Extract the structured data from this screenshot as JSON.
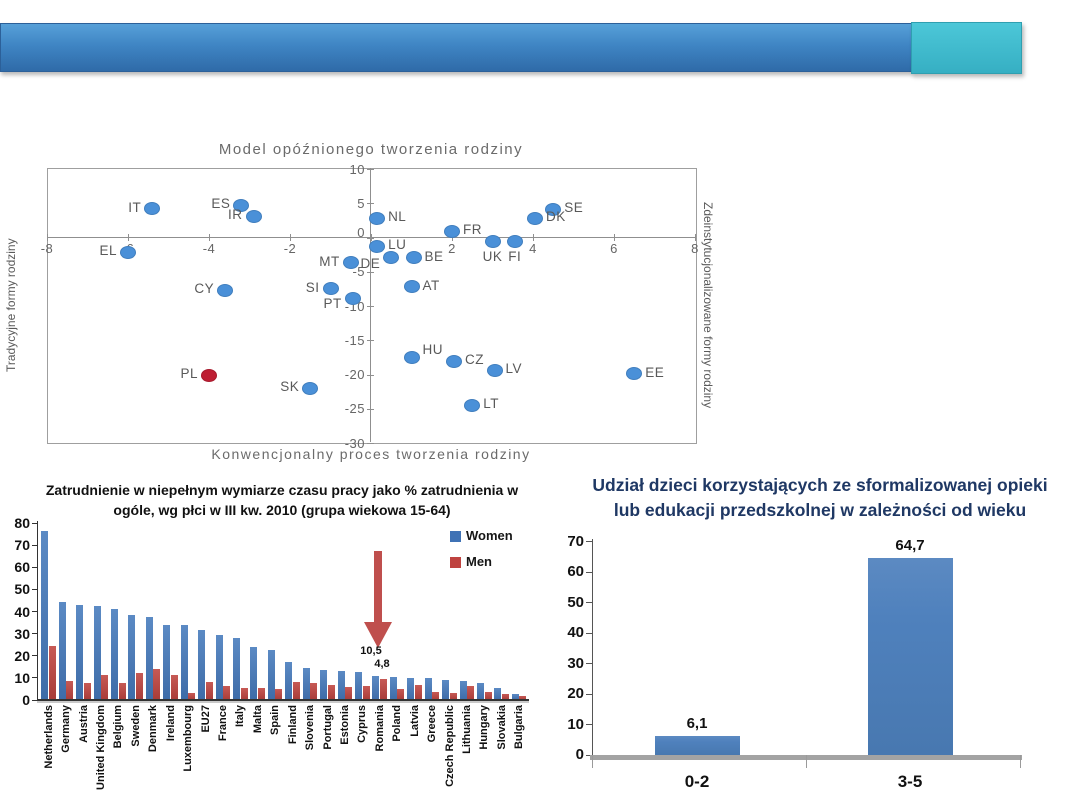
{
  "banner": {
    "main_color": "#3f85c4",
    "accent_color": "#3fbccf"
  },
  "chart_data": [
    {
      "type": "scatter",
      "title": "Model opóźnionego tworzenia rodziny",
      "xlabel": "Konwencjonalny proces tworzenia rodziny",
      "ylabel_left": "Tradycyjne formy rodziny",
      "ylabel_right": "Zdeinstytucjonalizowane formy rodziny",
      "xlim": [
        -8,
        8
      ],
      "ylim": [
        -30,
        10
      ],
      "x_ticks": [
        -8,
        -6,
        -4,
        -2,
        0,
        2,
        4,
        6,
        8
      ],
      "y_ticks": [
        10,
        5,
        0,
        -5,
        -10,
        -15,
        -20,
        -25,
        -30
      ],
      "grid": false,
      "point_color": "#4a90d8",
      "highlight_color": "#be1e33",
      "points": [
        {
          "code": "IT",
          "x": -5.4,
          "y": 4.3,
          "side": "left"
        },
        {
          "code": "ES",
          "x": -3.2,
          "y": 4.8,
          "side": "left"
        },
        {
          "code": "IR",
          "x": -2.9,
          "y": 3.2,
          "side": "left"
        },
        {
          "code": "NL",
          "x": 0.15,
          "y": 2.9,
          "side": "right"
        },
        {
          "code": "FR",
          "x": 2.0,
          "y": 1.0,
          "side": "right"
        },
        {
          "code": "SE",
          "x": 4.5,
          "y": 4.2,
          "side": "right"
        },
        {
          "code": "DK",
          "x": 4.05,
          "y": 2.9,
          "side": "right"
        },
        {
          "code": "UK",
          "x": 3.0,
          "y": -0.45,
          "side": "below"
        },
        {
          "code": "FI",
          "x": 3.55,
          "y": -0.45,
          "side": "below"
        },
        {
          "code": "EL",
          "x": -6.0,
          "y": -2.1,
          "side": "left"
        },
        {
          "code": "LU",
          "x": 0.15,
          "y": -1.2,
          "side": "right"
        },
        {
          "code": "DE",
          "x": 0.5,
          "y": -2.8,
          "side": "left",
          "dy": 8
        },
        {
          "code": "BE",
          "x": 1.05,
          "y": -2.9,
          "side": "right"
        },
        {
          "code": "MT",
          "x": -0.5,
          "y": -3.6,
          "side": "left"
        },
        {
          "code": "SI",
          "x": -1.0,
          "y": -7.4,
          "side": "left"
        },
        {
          "code": "PT",
          "x": -0.45,
          "y": -8.9,
          "side": "left",
          "dy": 6
        },
        {
          "code": "AT",
          "x": 1.0,
          "y": -7.1,
          "side": "right"
        },
        {
          "code": "CY",
          "x": -3.6,
          "y": -7.6,
          "side": "left"
        },
        {
          "code": "HU",
          "x": 1.0,
          "y": -17.4,
          "side": "right",
          "dy": -6
        },
        {
          "code": "CZ",
          "x": 2.05,
          "y": -18.0,
          "side": "right"
        },
        {
          "code": "LV",
          "x": 3.05,
          "y": -19.3,
          "side": "right"
        },
        {
          "code": "EE",
          "x": 6.5,
          "y": -19.8,
          "side": "right"
        },
        {
          "code": "LT",
          "x": 2.5,
          "y": -24.4,
          "side": "right"
        },
        {
          "code": "PL",
          "x": -4.0,
          "y": -20.0,
          "side": "left",
          "highlight": true
        },
        {
          "code": "SK",
          "x": -1.5,
          "y": -21.9,
          "side": "left"
        }
      ]
    },
    {
      "type": "bar",
      "title": "Zatrudnienie w niepełnym wymiarze czasu pracy jako % zatrudnienia w ogóle, wg płci w III kw. 2010 (grupa wiekowa 15-64)",
      "ylim": [
        0,
        80
      ],
      "y_ticks": [
        0,
        10,
        20,
        30,
        40,
        50,
        60,
        70,
        80
      ],
      "legend": [
        {
          "label": "Women",
          "color": "#3f72b5"
        },
        {
          "label": "Men",
          "color": "#bf4340"
        }
      ],
      "categories": [
        "Netherlands",
        "Germany",
        "Austria",
        "United Kingdom",
        "Belgium",
        "Sweden",
        "Denmark",
        "Ireland",
        "Luxembourg",
        "EU27",
        "France",
        "Italy",
        "Malta",
        "Spain",
        "Finland",
        "Slovenia",
        "Portugal",
        "Estonia",
        "Cyprus",
        "Romania",
        "Poland",
        "Latvia",
        "Greece",
        "Czech Republic",
        "Lithuania",
        "Hungary",
        "Slovakia",
        "Bulgaria"
      ],
      "series": [
        {
          "name": "Women",
          "color": "#4577b6",
          "values": [
            76.5,
            44.5,
            43,
            42.5,
            41,
            38.5,
            37.5,
            34,
            34,
            31.5,
            29.5,
            28,
            24,
            22.5,
            17,
            14.5,
            13.5,
            13,
            12.5,
            11,
            10.5,
            10,
            10,
            9,
            8.5,
            7.5,
            5.5,
            2.5
          ]
        },
        {
          "name": "Men",
          "color": "#bf4340",
          "values": [
            24.5,
            8.5,
            7.5,
            11.5,
            7.5,
            12,
            14,
            11.5,
            3,
            8,
            6.5,
            5.5,
            5.5,
            5,
            8,
            7.5,
            7,
            6,
            6.5,
            9.5,
            4.8,
            7,
            3.5,
            3,
            6.5,
            3.5,
            2.5,
            2
          ]
        }
      ],
      "annotation": {
        "target": "Poland",
        "labels": [
          "10,5",
          "4,8"
        ],
        "arrow_color": "#bf4f4d"
      }
    },
    {
      "type": "bar",
      "title": "Udział dzieci korzystających ze sformalizowanej opieki lub edukacji przedszkolnej w zależności od wieku",
      "title_lines": [
        "Udział dzieci korzystających ze sformalizowanej opieki",
        "lub edukacji przedszkolnej w zależności od wieku"
      ],
      "categories": [
        "0-2",
        "3-5"
      ],
      "values": [
        6.1,
        64.7
      ],
      "value_labels": [
        "6,1",
        "64,7"
      ],
      "ylim": [
        0,
        70
      ],
      "y_ticks": [
        0,
        10,
        20,
        30,
        40,
        50,
        60,
        70
      ],
      "bar_color": "#4f81bd"
    }
  ]
}
